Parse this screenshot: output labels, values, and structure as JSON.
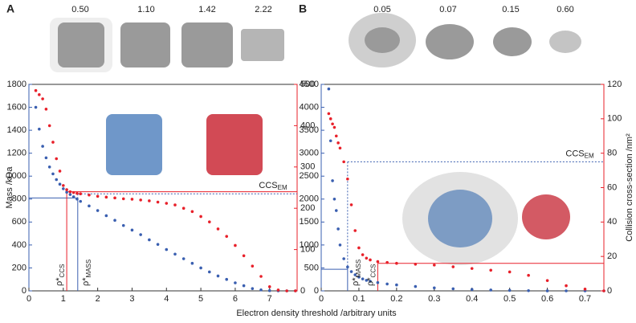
{
  "figure_xlabel": "Electron density threshold /arbitrary units",
  "chart_data": [
    {
      "type": "scatter",
      "title": "A",
      "thumbnails": [
        "0.50",
        "1.10",
        "1.42",
        "2.22"
      ],
      "ylabel": "Mass /kDa",
      "xlim": [
        0,
        7.8
      ],
      "xticks": [
        0,
        1,
        2,
        3,
        4,
        5,
        6,
        7
      ],
      "ylim": [
        0,
        1800
      ],
      "yticks": [
        0,
        200,
        400,
        600,
        800,
        1000,
        1200,
        1400,
        1600,
        1800
      ],
      "y2lim": [
        0,
        500
      ],
      "y2ticks": [
        0,
        100,
        200,
        300,
        400,
        500
      ],
      "axis_color": "#3a5fb0",
      "axis2_color": "#e8202a",
      "series": [
        {
          "color": "#3a5fb0",
          "axis": "y",
          "x": [
            0.2,
            0.3,
            0.4,
            0.5,
            0.6,
            0.7,
            0.8,
            0.9,
            1.0,
            1.1,
            1.2,
            1.3,
            1.4,
            1.5,
            1.75,
            2,
            2.25,
            2.5,
            2.75,
            3,
            3.25,
            3.5,
            3.75,
            4,
            4.25,
            4.5,
            4.75,
            5,
            5.25,
            5.5,
            5.75,
            6,
            6.25,
            6.5,
            6.75,
            7,
            7.25,
            7.5,
            7.75
          ],
          "values": [
            1600,
            1410,
            1260,
            1160,
            1080,
            1020,
            970,
            930,
            890,
            860,
            840,
            820,
            800,
            780,
            740,
            700,
            655,
            615,
            570,
            530,
            490,
            445,
            405,
            360,
            320,
            280,
            240,
            200,
            165,
            130,
            100,
            70,
            45,
            20,
            8,
            2,
            0,
            0,
            0
          ]
        },
        {
          "color": "#e8202a",
          "axis": "y2",
          "x": [
            0.2,
            0.3,
            0.4,
            0.5,
            0.6,
            0.7,
            0.8,
            0.9,
            1.0,
            1.1,
            1.2,
            1.3,
            1.4,
            1.5,
            1.75,
            2,
            2.25,
            2.5,
            2.75,
            3,
            3.25,
            3.5,
            3.75,
            4,
            4.25,
            4.5,
            4.75,
            5,
            5.25,
            5.5,
            5.75,
            6,
            6.25,
            6.5,
            6.75,
            7,
            7.25,
            7.5,
            7.75
          ],
          "values": [
            485,
            475,
            465,
            440,
            400,
            360,
            320,
            290,
            255,
            245,
            240,
            238,
            236,
            235,
            232,
            229,
            227,
            225,
            223,
            222,
            220,
            218,
            215,
            212,
            208,
            200,
            192,
            180,
            167,
            150,
            132,
            110,
            85,
            60,
            35,
            10,
            2,
            0,
            0
          ]
        }
      ],
      "rho_mass": {
        "x": 1.42,
        "y": 810
      },
      "rho_ccs": {
        "x": 1.1,
        "y": 240
      },
      "ccs_em": 235,
      "rho_label": "ρ*",
      "rho_mass_sub": "MASS",
      "rho_ccs_sub": "CCS",
      "ccs_label": "CCS",
      "ccs_sub": "EM"
    },
    {
      "type": "scatter",
      "title": "B",
      "thumbnails": [
        "0.05",
        "0.07",
        "0.15",
        "0.60"
      ],
      "y2label": "Collision cross-section /nm²",
      "xlim": [
        0,
        0.75
      ],
      "xticks": [
        0,
        0.1,
        0.2,
        0.3,
        0.4,
        0.5,
        0.6,
        0.7
      ],
      "ylim": [
        0,
        4500
      ],
      "yticks": [
        0,
        500,
        1000,
        1500,
        2000,
        2500,
        3000,
        3500,
        4000,
        4500
      ],
      "y2lim": [
        0,
        120
      ],
      "y2ticks": [
        0,
        20,
        40,
        60,
        80,
        100,
        120
      ],
      "axis_color": "#3a5fb0",
      "axis2_color": "#e8202a",
      "series": [
        {
          "color": "#3a5fb0",
          "axis": "y",
          "x": [
            0.02,
            0.025,
            0.03,
            0.035,
            0.04,
            0.045,
            0.05,
            0.06,
            0.07,
            0.08,
            0.09,
            0.1,
            0.11,
            0.12,
            0.13,
            0.15,
            0.175,
            0.2,
            0.25,
            0.3,
            0.35,
            0.4,
            0.45,
            0.5,
            0.55,
            0.6,
            0.65,
            0.7,
            0.75
          ],
          "values": [
            4400,
            3270,
            2400,
            2000,
            1750,
            1350,
            1000,
            700,
            520,
            420,
            350,
            300,
            260,
            230,
            210,
            180,
            150,
            130,
            95,
            65,
            45,
            30,
            18,
            10,
            4,
            1,
            0,
            0,
            0
          ]
        },
        {
          "color": "#e8202a",
          "axis": "y2",
          "x": [
            0.02,
            0.025,
            0.03,
            0.035,
            0.04,
            0.045,
            0.05,
            0.06,
            0.07,
            0.08,
            0.09,
            0.1,
            0.11,
            0.12,
            0.13,
            0.15,
            0.175,
            0.2,
            0.25,
            0.3,
            0.35,
            0.4,
            0.45,
            0.5,
            0.55,
            0.6,
            0.65,
            0.7,
            0.75
          ],
          "values": [
            103,
            100,
            97,
            95,
            90,
            86,
            83,
            75,
            65,
            50,
            35,
            25,
            21,
            19,
            18,
            17,
            16.5,
            16,
            15.5,
            15,
            14,
            13,
            12,
            11,
            9,
            6,
            3,
            1,
            0
          ]
        }
      ],
      "rho_mass": {
        "x": 0.07,
        "y": 470
      },
      "rho_ccs": {
        "x": 0.15,
        "y": 16
      },
      "ccs_em": 75,
      "rho_label": "ρ*",
      "rho_mass_sub": "MASS",
      "rho_ccs_sub": "CCS",
      "ccs_label": "CCS",
      "ccs_sub": "EM"
    }
  ]
}
